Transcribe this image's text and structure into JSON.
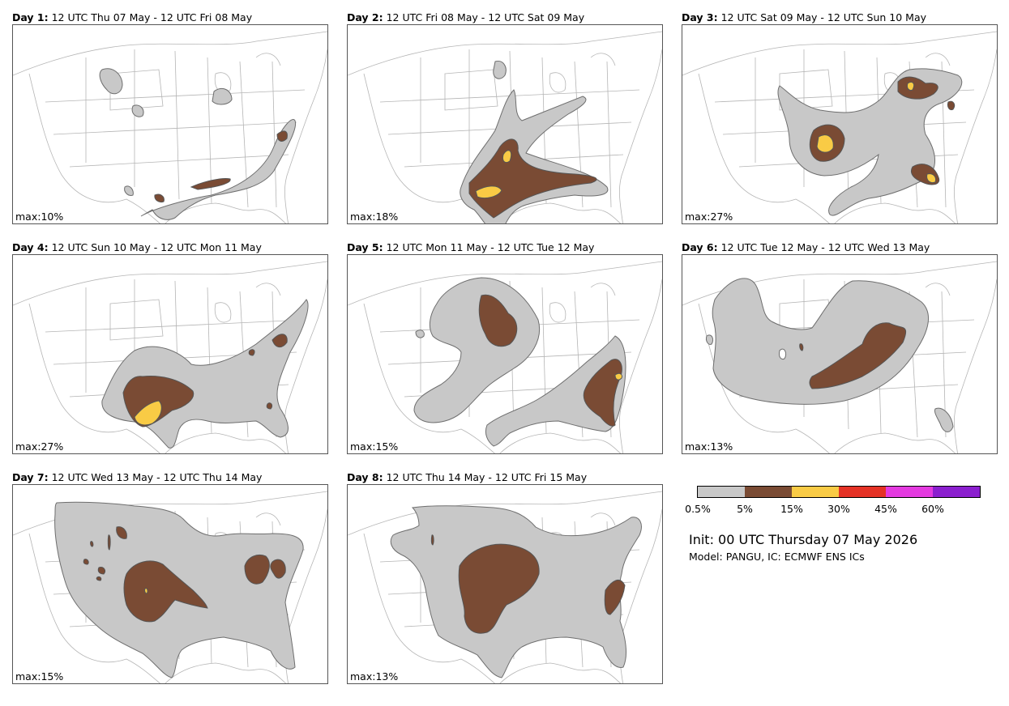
{
  "panels": [
    {
      "day": "Day 1",
      "range": "12 UTC Thu 07 May - 12 UTC Fri 08 May",
      "max": "max:10%"
    },
    {
      "day": "Day 2",
      "range": "12 UTC Fri 08 May - 12 UTC Sat 09 May",
      "max": "max:18%"
    },
    {
      "day": "Day 3",
      "range": "12 UTC Sat 09 May - 12 UTC Sun 10 May",
      "max": "max:27%"
    },
    {
      "day": "Day 4",
      "range": "12 UTC Sun 10 May - 12 UTC Mon 11 May",
      "max": "max:27%"
    },
    {
      "day": "Day 5",
      "range": "12 UTC Mon 11 May - 12 UTC Tue 12 May",
      "max": "max:15%"
    },
    {
      "day": "Day 6",
      "range": "12 UTC Tue 12 May - 12 UTC Wed 13 May",
      "max": "max:13%"
    },
    {
      "day": "Day 7",
      "range": "12 UTC Wed 13 May - 12 UTC Thu 14 May",
      "max": "max:15%"
    },
    {
      "day": "Day 8",
      "range": "12 UTC Thu 14 May - 12 UTC Fri 15 May",
      "max": "max:13%"
    }
  ],
  "legend": {
    "ticks": [
      "0.5%",
      "5%",
      "15%",
      "30%",
      "45%",
      "60%"
    ],
    "colors": [
      "#c8c8c8",
      "#7a4b34",
      "#f9cb45",
      "#e53226",
      "#e43ae0",
      "#8b1fcf"
    ]
  },
  "init_text": "Init: 00 UTC Thursday 07 May 2026",
  "model_text": "Model: PANGU, IC: ECMWF ENS ICs",
  "colors": {
    "low": "#c8c8c8",
    "mid": "#7a4b34",
    "high": "#f9cb45",
    "outline": "#6e6e6e"
  }
}
